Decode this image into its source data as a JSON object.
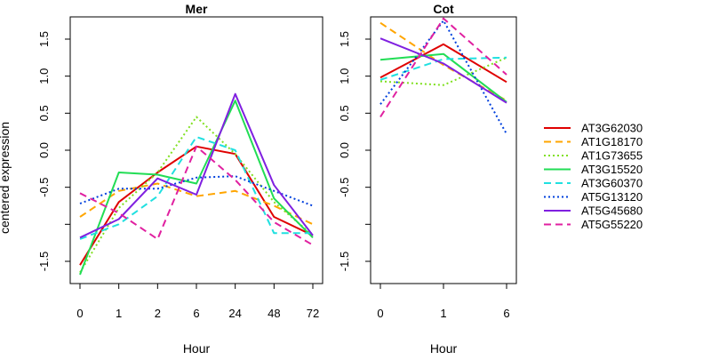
{
  "chart_data": {
    "type": "line",
    "ylabel": "centered expression",
    "ylim": [
      -1.8,
      1.8
    ],
    "yticks": [
      -1.5,
      -1.0,
      -0.5,
      0.0,
      0.5,
      1.0,
      1.5
    ],
    "ytick_labels": [
      "-1.5",
      "",
      "-0.5",
      "0.0",
      "0.5",
      "1.0",
      "1.5"
    ],
    "legend_position": "right",
    "series_styles": [
      {
        "name": "AT3G62030",
        "color": "#DF0000",
        "dash": "solid"
      },
      {
        "name": "AT1G18170",
        "color": "#FFA500",
        "dash": "dashed"
      },
      {
        "name": "AT1G73655",
        "color": "#80E020",
        "dash": "dotted"
      },
      {
        "name": "AT3G15520",
        "color": "#22DD55",
        "dash": "solid"
      },
      {
        "name": "AT3G60370",
        "color": "#20E0E0",
        "dash": "dashed"
      },
      {
        "name": "AT5G13120",
        "color": "#0040DD",
        "dash": "dotted"
      },
      {
        "name": "AT5G45680",
        "color": "#8020E0",
        "dash": "solid"
      },
      {
        "name": "AT5G55220",
        "color": "#E020A0",
        "dash": "dashed"
      }
    ],
    "panels": [
      {
        "title": "Mer",
        "xlabel": "Hour",
        "categories": [
          "0",
          "1",
          "2",
          "6",
          "24",
          "48",
          "72"
        ],
        "series": [
          {
            "name": "AT3G62030",
            "values": [
              -1.55,
              -0.7,
              -0.3,
              0.05,
              -0.05,
              -0.9,
              -1.15
            ]
          },
          {
            "name": "AT1G18170",
            "values": [
              -0.9,
              -0.55,
              -0.45,
              -0.62,
              -0.55,
              -0.75,
              -1.0
            ]
          },
          {
            "name": "AT1G73655",
            "values": [
              -1.65,
              -0.78,
              -0.3,
              0.45,
              -0.05,
              -0.7,
              -1.15
            ]
          },
          {
            "name": "AT3G15520",
            "values": [
              -1.68,
              -0.3,
              -0.33,
              -0.45,
              0.67,
              -0.65,
              -1.18
            ]
          },
          {
            "name": "AT3G60370",
            "values": [
              -1.2,
              -1.0,
              -0.62,
              0.18,
              0.0,
              -1.12,
              -1.12
            ]
          },
          {
            "name": "AT5G13120",
            "values": [
              -0.72,
              -0.52,
              -0.52,
              -0.37,
              -0.35,
              -0.55,
              -0.75
            ]
          },
          {
            "name": "AT5G45680",
            "values": [
              -1.18,
              -0.93,
              -0.38,
              -0.6,
              0.76,
              -0.47,
              -1.15
            ]
          },
          {
            "name": "AT5G55220",
            "values": [
              -0.58,
              -0.85,
              -1.2,
              0.05,
              -0.4,
              -0.97,
              -1.28
            ]
          }
        ]
      },
      {
        "title": "Cot",
        "xlabel": "Hour",
        "categories": [
          "0",
          "1",
          "6"
        ],
        "series": [
          {
            "name": "AT3G62030",
            "values": [
              0.98,
              1.43,
              0.92
            ]
          },
          {
            "name": "AT1G18170",
            "values": [
              1.72,
              1.15,
              0.67
            ]
          },
          {
            "name": "AT1G73655",
            "values": [
              0.93,
              0.88,
              1.25
            ]
          },
          {
            "name": "AT3G15520",
            "values": [
              1.22,
              1.3,
              0.65
            ]
          },
          {
            "name": "AT3G60370",
            "values": [
              0.95,
              1.23,
              1.25
            ]
          },
          {
            "name": "AT5G13120",
            "values": [
              0.62,
              1.75,
              0.22
            ]
          },
          {
            "name": "AT5G45680",
            "values": [
              1.51,
              1.17,
              0.64
            ]
          },
          {
            "name": "AT5G55220",
            "values": [
              0.45,
              1.78,
              1.02
            ]
          }
        ]
      }
    ]
  }
}
